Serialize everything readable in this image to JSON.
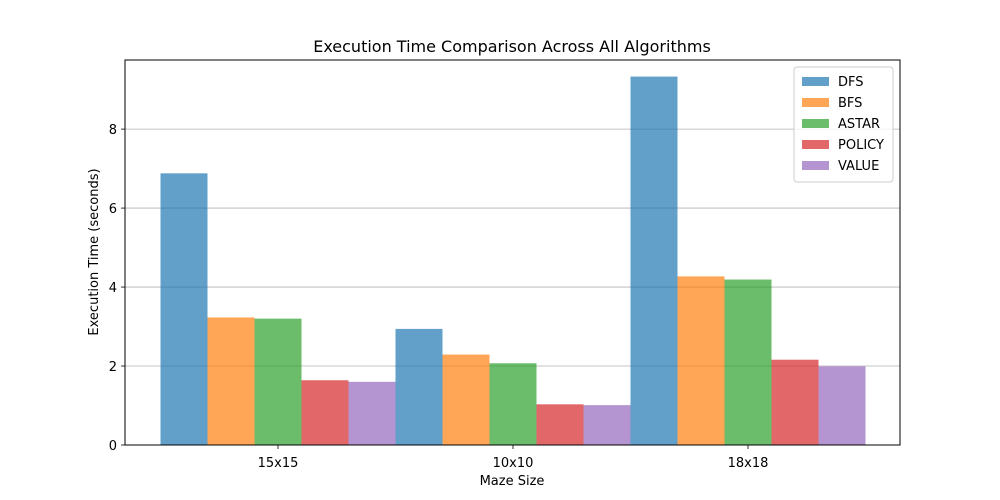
{
  "chart_data": {
    "type": "bar",
    "title": "Execution Time Comparison Across All Algorithms",
    "xlabel": "Maze Size",
    "ylabel": "Execution Time (seconds)",
    "categories": [
      "15x15",
      "10x10",
      "18x18"
    ],
    "ylim": [
      0,
      9.75
    ],
    "yticks": [
      0,
      2,
      4,
      6,
      8
    ],
    "grid": "y",
    "legend_position": "top-right",
    "series": [
      {
        "name": "DFS",
        "color": "#1f77b4",
        "values": [
          6.88,
          2.94,
          9.33
        ]
      },
      {
        "name": "BFS",
        "color": "#ff7f0e",
        "values": [
          3.23,
          2.29,
          4.27
        ]
      },
      {
        "name": "ASTAR",
        "color": "#2ca02c",
        "values": [
          3.2,
          2.07,
          4.19
        ]
      },
      {
        "name": "POLICY",
        "color": "#d62728",
        "values": [
          1.64,
          1.03,
          2.16
        ]
      },
      {
        "name": "VALUE",
        "color": "#9467bd",
        "values": [
          1.6,
          1.01,
          1.99
        ]
      }
    ]
  }
}
